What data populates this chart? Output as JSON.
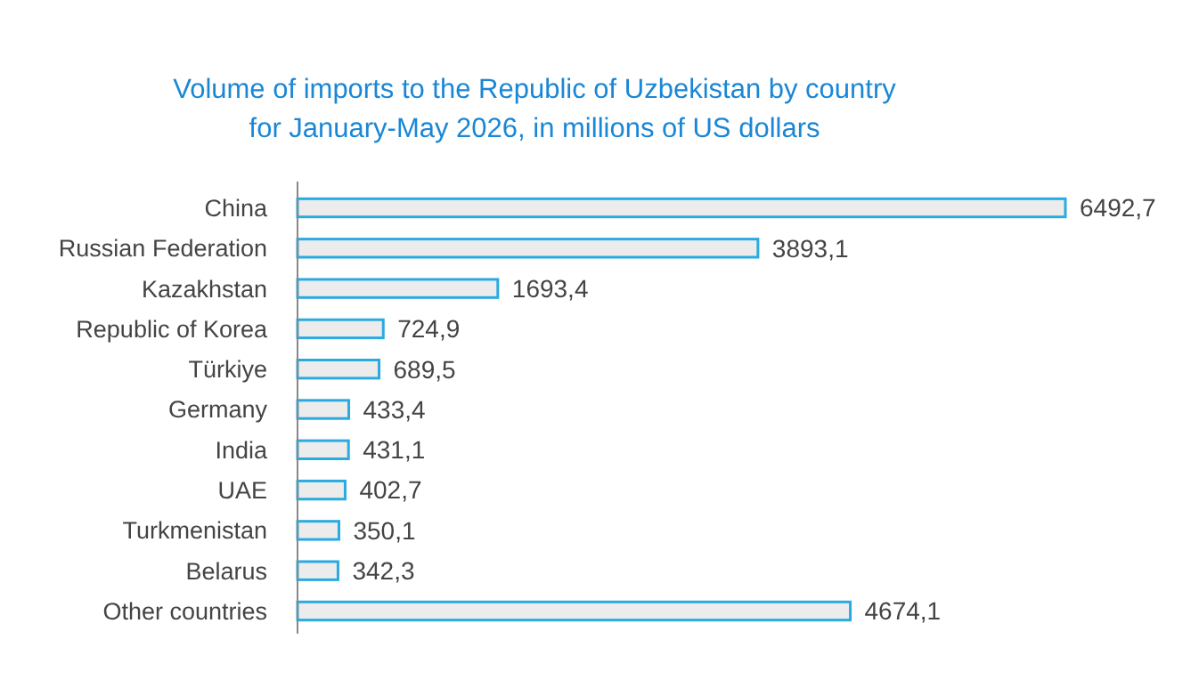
{
  "chart_data": {
    "type": "bar",
    "orientation": "horizontal",
    "title": "Volume of imports to the Republic of Uzbekistan by country\nfor January-May 2026, in millions of US dollars",
    "categories": [
      "China",
      "Russian Federation",
      "Kazakhstan",
      "Republic of Korea",
      "Türkiye",
      "Germany",
      "India",
      "UAE",
      "Turkmenistan",
      "Belarus",
      "Other countries"
    ],
    "values": [
      6492.7,
      3893.1,
      1693.4,
      724.9,
      689.5,
      433.4,
      431.1,
      402.7,
      350.1,
      342.3,
      4674.1
    ],
    "value_labels": [
      "6492,7",
      "3893,1",
      "1693,4",
      "724,9",
      "689,5",
      "433,4",
      "431,1",
      "402,7",
      "350,1",
      "342,3",
      "4674,1"
    ],
    "color": "#29abe2"
  }
}
